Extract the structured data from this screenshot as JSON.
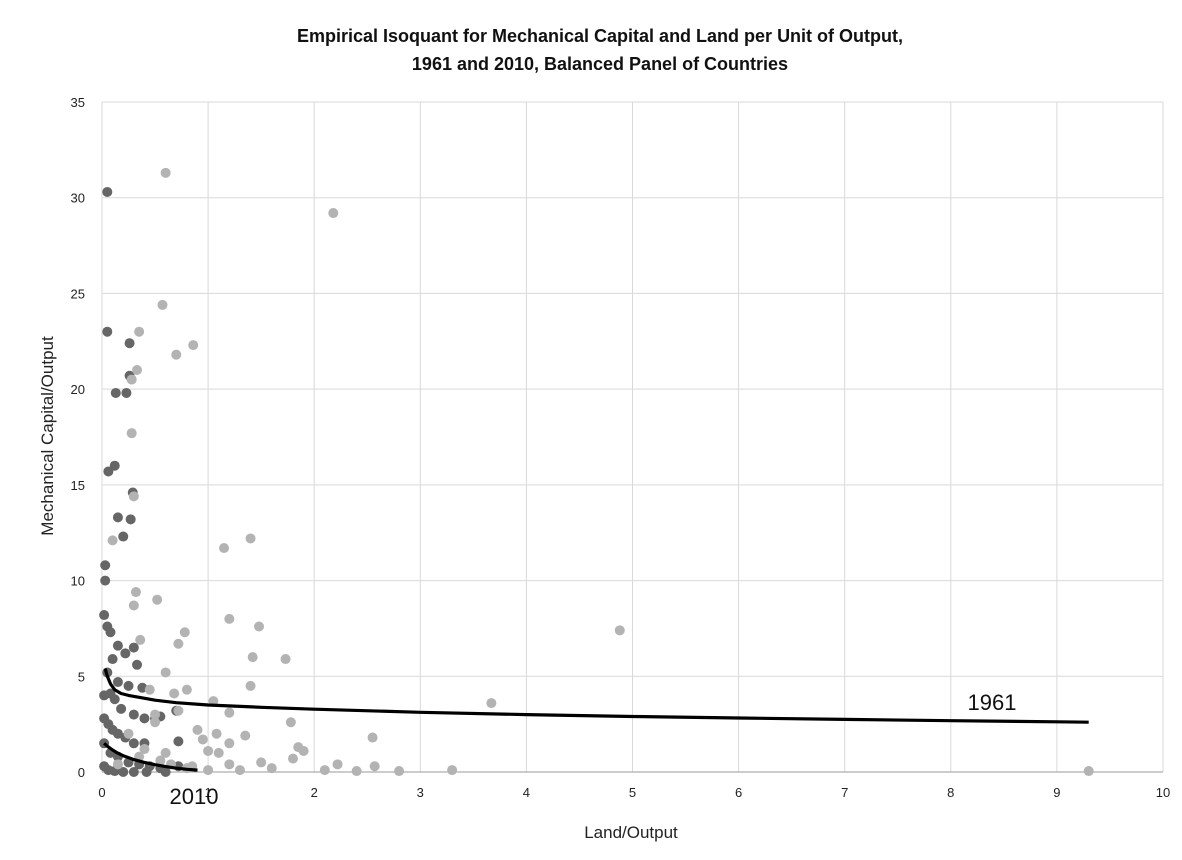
{
  "chart_data": {
    "type": "scatter",
    "title_line1": "Empirical Isoquant for Mechanical Capital and Land per Unit of Output,",
    "title_line2": "1961 and 2010, Balanced Panel of Countries",
    "xlabel": "Land/Output",
    "ylabel": "Mechanical Capital/Output",
    "xlim": [
      0,
      10
    ],
    "ylim": [
      0,
      35
    ],
    "xticks": [
      "0",
      "1",
      "2",
      "3",
      "4",
      "5",
      "6",
      "7",
      "8",
      "9",
      "10"
    ],
    "yticks": [
      "0",
      "5",
      "10",
      "15",
      "20",
      "25",
      "30",
      "35"
    ],
    "grid": true,
    "colors": {
      "dark_points": "#666666",
      "light_points": "#b3b3b3",
      "curve": "#000000",
      "grid": "#d9d9d9"
    },
    "series": [
      {
        "color_role": "dark_points",
        "points": [
          [
            0.05,
            30.3
          ],
          [
            0.05,
            23.0
          ],
          [
            0.13,
            19.8
          ],
          [
            0.23,
            19.8
          ],
          [
            0.26,
            22.4
          ],
          [
            0.26,
            20.7
          ],
          [
            0.06,
            15.7
          ],
          [
            0.12,
            16.0
          ],
          [
            0.15,
            13.3
          ],
          [
            0.27,
            13.2
          ],
          [
            0.29,
            14.6
          ],
          [
            0.2,
            12.3
          ],
          [
            0.03,
            10.8
          ],
          [
            0.03,
            10.0
          ],
          [
            0.02,
            8.2
          ],
          [
            0.05,
            7.6
          ],
          [
            0.08,
            7.3
          ],
          [
            0.15,
            6.6
          ],
          [
            0.22,
            6.2
          ],
          [
            0.3,
            6.5
          ],
          [
            0.33,
            5.6
          ],
          [
            0.1,
            5.9
          ],
          [
            0.05,
            5.2
          ],
          [
            0.15,
            4.7
          ],
          [
            0.25,
            4.5
          ],
          [
            0.38,
            4.4
          ],
          [
            0.02,
            4.0
          ],
          [
            0.08,
            4.1
          ],
          [
            0.12,
            3.8
          ],
          [
            0.18,
            3.3
          ],
          [
            0.3,
            3.0
          ],
          [
            0.4,
            2.8
          ],
          [
            0.5,
            2.8
          ],
          [
            0.02,
            2.8
          ],
          [
            0.06,
            2.5
          ],
          [
            0.1,
            2.2
          ],
          [
            0.15,
            2.0
          ],
          [
            0.22,
            1.8
          ],
          [
            0.3,
            1.5
          ],
          [
            0.4,
            1.5
          ],
          [
            0.02,
            1.5
          ],
          [
            0.08,
            1.0
          ],
          [
            0.15,
            0.8
          ],
          [
            0.25,
            0.5
          ],
          [
            0.35,
            0.4
          ],
          [
            0.45,
            0.3
          ],
          [
            0.55,
            0.2
          ],
          [
            0.02,
            0.3
          ],
          [
            0.06,
            0.1
          ],
          [
            0.12,
            0.05
          ],
          [
            0.2,
            0.0
          ],
          [
            0.3,
            0.0
          ],
          [
            0.42,
            0.0
          ],
          [
            0.6,
            0.0
          ],
          [
            0.7,
            3.2
          ],
          [
            0.72,
            0.3
          ],
          [
            0.72,
            1.6
          ],
          [
            0.55,
            2.9
          ]
        ]
      },
      {
        "color_role": "light_points",
        "points": [
          [
            0.6,
            31.3
          ],
          [
            2.18,
            29.2
          ],
          [
            0.57,
            24.4
          ],
          [
            0.35,
            23.0
          ],
          [
            0.7,
            21.8
          ],
          [
            0.86,
            22.3
          ],
          [
            0.33,
            21.0
          ],
          [
            0.28,
            20.5
          ],
          [
            0.28,
            17.7
          ],
          [
            0.3,
            14.4
          ],
          [
            0.1,
            12.1
          ],
          [
            1.15,
            11.7
          ],
          [
            1.4,
            12.2
          ],
          [
            0.32,
            9.4
          ],
          [
            0.52,
            9.0
          ],
          [
            0.3,
            8.7
          ],
          [
            1.2,
            8.0
          ],
          [
            1.48,
            7.6
          ],
          [
            4.88,
            7.4
          ],
          [
            0.78,
            7.3
          ],
          [
            0.36,
            6.9
          ],
          [
            0.72,
            6.7
          ],
          [
            1.42,
            6.0
          ],
          [
            1.73,
            5.9
          ],
          [
            0.6,
            5.2
          ],
          [
            0.45,
            4.3
          ],
          [
            0.68,
            4.1
          ],
          [
            0.8,
            4.3
          ],
          [
            1.4,
            4.5
          ],
          [
            1.05,
            3.7
          ],
          [
            3.67,
            3.6
          ],
          [
            0.5,
            3.0
          ],
          [
            0.72,
            3.2
          ],
          [
            1.2,
            3.1
          ],
          [
            1.78,
            2.6
          ],
          [
            0.9,
            2.2
          ],
          [
            1.08,
            2.0
          ],
          [
            1.35,
            1.9
          ],
          [
            2.55,
            1.8
          ],
          [
            0.95,
            1.7
          ],
          [
            1.2,
            1.5
          ],
          [
            1.85,
            1.3
          ],
          [
            1.9,
            1.1
          ],
          [
            0.6,
            1.0
          ],
          [
            1.0,
            1.1
          ],
          [
            1.1,
            1.0
          ],
          [
            1.8,
            0.7
          ],
          [
            1.5,
            0.5
          ],
          [
            2.22,
            0.4
          ],
          [
            2.57,
            0.3
          ],
          [
            1.2,
            0.4
          ],
          [
            0.8,
            0.2
          ],
          [
            1.0,
            0.1
          ],
          [
            1.3,
            0.1
          ],
          [
            1.6,
            0.2
          ],
          [
            2.1,
            0.1
          ],
          [
            2.4,
            0.05
          ],
          [
            2.8,
            0.05
          ],
          [
            3.3,
            0.1
          ],
          [
            9.3,
            0.05
          ],
          [
            0.5,
            2.6
          ],
          [
            0.25,
            2.0
          ],
          [
            0.4,
            1.2
          ],
          [
            0.55,
            0.6
          ],
          [
            0.65,
            0.4
          ],
          [
            0.85,
            0.3
          ],
          [
            0.15,
            0.4
          ],
          [
            0.35,
            0.8
          ]
        ]
      }
    ],
    "curves": [
      {
        "label": "1961",
        "x": [
          0.03,
          0.05,
          0.08,
          0.12,
          0.18,
          0.25,
          0.35,
          0.5,
          0.7,
          1,
          1.5,
          2,
          3,
          4,
          5,
          6,
          7,
          8,
          9,
          9.3
        ],
        "y": [
          5.4,
          5.0,
          4.6,
          4.3,
          4.1,
          4.0,
          3.9,
          3.75,
          3.62,
          3.5,
          3.38,
          3.28,
          3.12,
          3.0,
          2.9,
          2.82,
          2.75,
          2.68,
          2.62,
          2.6
        ]
      },
      {
        "label": "2010",
        "x": [
          0.02,
          0.05,
          0.1,
          0.15,
          0.2,
          0.3,
          0.4,
          0.5,
          0.6,
          0.7,
          0.8,
          0.9
        ],
        "y": [
          1.5,
          1.35,
          1.15,
          0.98,
          0.85,
          0.65,
          0.5,
          0.38,
          0.28,
          0.2,
          0.14,
          0.1
        ]
      }
    ]
  }
}
